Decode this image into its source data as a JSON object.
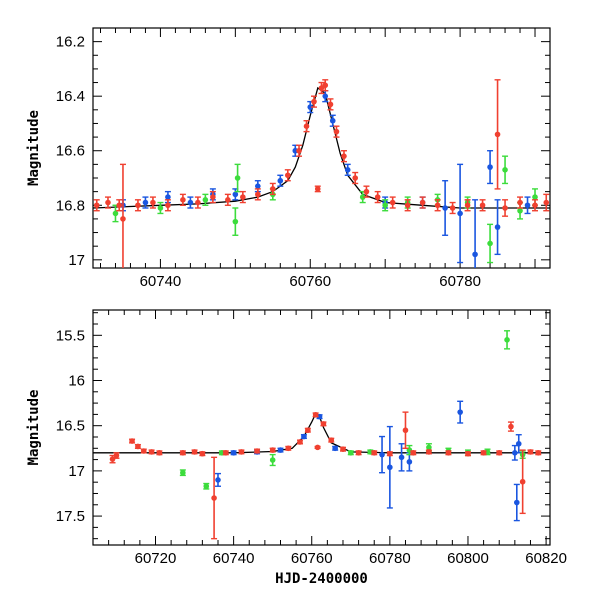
{
  "chart_data": [
    {
      "type": "scatter",
      "title": "",
      "xlabel": "",
      "ylabel": "Magnitude",
      "xlim": [
        60731,
        60792
      ],
      "ylim": [
        17.03,
        16.15
      ],
      "y_inverted": true,
      "xticks": [
        60740,
        60750,
        60760,
        60770,
        60780,
        60790
      ],
      "xtick_labels": [
        "60740",
        "",
        "60760",
        "",
        "60780",
        ""
      ],
      "yticks": [
        16.2,
        16.4,
        16.6,
        16.8,
        17.0
      ],
      "ytick_labels": [
        "16.2",
        "16.4",
        "16.6",
        "16.8",
        "17"
      ],
      "grid": false,
      "model": {
        "name": "",
        "color": "#000000",
        "x": [
          60731,
          60740,
          60745,
          60750,
          60753,
          60755,
          60757,
          60758,
          60759,
          60760,
          60761,
          60762,
          60763,
          60764,
          60765,
          60767,
          60770,
          60775,
          60780,
          60792
        ],
        "y": [
          16.81,
          16.8,
          16.795,
          16.785,
          16.77,
          16.75,
          16.71,
          16.66,
          16.58,
          16.47,
          16.37,
          16.39,
          16.5,
          16.61,
          16.69,
          16.76,
          16.79,
          16.8,
          16.81,
          16.81
        ]
      },
      "series": [
        {
          "color": "#1a56e0",
          "points": [
            {
              "x": 60735,
              "y": 16.8,
              "err": 0.02
            },
            {
              "x": 60738,
              "y": 16.79,
              "err": 0.02
            },
            {
              "x": 60741,
              "y": 16.77,
              "err": 0.02
            },
            {
              "x": 60744,
              "y": 16.79,
              "err": 0.02
            },
            {
              "x": 60747,
              "y": 16.76,
              "err": 0.02
            },
            {
              "x": 60750,
              "y": 16.76,
              "err": 0.02
            },
            {
              "x": 60753,
              "y": 16.73,
              "err": 0.02
            },
            {
              "x": 60756,
              "y": 16.71,
              "err": 0.02
            },
            {
              "x": 60758,
              "y": 16.6,
              "err": 0.02
            },
            {
              "x": 60760,
              "y": 16.44,
              "err": 0.02
            },
            {
              "x": 60762,
              "y": 16.4,
              "err": 0.02
            },
            {
              "x": 60763,
              "y": 16.49,
              "err": 0.02
            },
            {
              "x": 60765,
              "y": 16.67,
              "err": 0.02
            },
            {
              "x": 60770,
              "y": 16.79,
              "err": 0.02
            },
            {
              "x": 60775,
              "y": 16.79,
              "err": 0.02
            },
            {
              "x": 60778,
              "y": 16.81,
              "err": 0.1
            },
            {
              "x": 60780,
              "y": 16.83,
              "err": 0.18
            },
            {
              "x": 60782,
              "y": 16.98,
              "err": 0.2
            },
            {
              "x": 60784,
              "y": 16.66,
              "err": 0.06
            },
            {
              "x": 60785,
              "y": 16.88,
              "err": 0.1
            },
            {
              "x": 60789,
              "y": 16.8,
              "err": 0.03
            }
          ]
        },
        {
          "color": "#3cdc3c",
          "points": [
            {
              "x": 60734,
              "y": 16.83,
              "err": 0.03
            },
            {
              "x": 60740,
              "y": 16.81,
              "err": 0.02
            },
            {
              "x": 60746,
              "y": 16.78,
              "err": 0.02
            },
            {
              "x": 60750,
              "y": 16.86,
              "err": 0.05
            },
            {
              "x": 60750.3,
              "y": 16.7,
              "err": 0.05
            },
            {
              "x": 60755,
              "y": 16.76,
              "err": 0.02
            },
            {
              "x": 60767,
              "y": 16.77,
              "err": 0.02
            },
            {
              "x": 60770,
              "y": 16.8,
              "err": 0.02
            },
            {
              "x": 60773,
              "y": 16.79,
              "err": 0.02
            },
            {
              "x": 60777,
              "y": 16.78,
              "err": 0.02
            },
            {
              "x": 60781,
              "y": 16.79,
              "err": 0.02
            },
            {
              "x": 60784,
              "y": 16.94,
              "err": 0.07
            },
            {
              "x": 60786,
              "y": 16.67,
              "err": 0.05
            },
            {
              "x": 60788,
              "y": 16.82,
              "err": 0.03
            },
            {
              "x": 60790,
              "y": 16.77,
              "err": 0.03
            }
          ]
        },
        {
          "color": "#f04030",
          "points": [
            {
              "x": 60731.5,
              "y": 16.8,
              "err": 0.02
            },
            {
              "x": 60733,
              "y": 16.79,
              "err": 0.02
            },
            {
              "x": 60734.5,
              "y": 16.8,
              "err": 0.02
            },
            {
              "x": 60735,
              "y": 16.85,
              "err": 0.2
            },
            {
              "x": 60737,
              "y": 16.8,
              "err": 0.02
            },
            {
              "x": 60739,
              "y": 16.79,
              "err": 0.02
            },
            {
              "x": 60741,
              "y": 16.8,
              "err": 0.02
            },
            {
              "x": 60743,
              "y": 16.78,
              "err": 0.02
            },
            {
              "x": 60745,
              "y": 16.79,
              "err": 0.02
            },
            {
              "x": 60747,
              "y": 16.77,
              "err": 0.02
            },
            {
              "x": 60749,
              "y": 16.78,
              "err": 0.02
            },
            {
              "x": 60751,
              "y": 16.77,
              "err": 0.02
            },
            {
              "x": 60753,
              "y": 16.76,
              "err": 0.02
            },
            {
              "x": 60755,
              "y": 16.74,
              "err": 0.02
            },
            {
              "x": 60757,
              "y": 16.69,
              "err": 0.02
            },
            {
              "x": 60758.5,
              "y": 16.6,
              "err": 0.02
            },
            {
              "x": 60759.5,
              "y": 16.51,
              "err": 0.02
            },
            {
              "x": 60760.5,
              "y": 16.42,
              "err": 0.02
            },
            {
              "x": 60761,
              "y": 16.74,
              "err": 0.01
            },
            {
              "x": 60761.5,
              "y": 16.37,
              "err": 0.02
            },
            {
              "x": 60762,
              "y": 16.36,
              "err": 0.02
            },
            {
              "x": 60762.7,
              "y": 16.43,
              "err": 0.02
            },
            {
              "x": 60763.5,
              "y": 16.53,
              "err": 0.02
            },
            {
              "x": 60764.5,
              "y": 16.62,
              "err": 0.02
            },
            {
              "x": 60766,
              "y": 16.7,
              "err": 0.02
            },
            {
              "x": 60767.5,
              "y": 16.75,
              "err": 0.02
            },
            {
              "x": 60769,
              "y": 16.77,
              "err": 0.02
            },
            {
              "x": 60771,
              "y": 16.79,
              "err": 0.02
            },
            {
              "x": 60773,
              "y": 16.8,
              "err": 0.02
            },
            {
              "x": 60775,
              "y": 16.79,
              "err": 0.02
            },
            {
              "x": 60777,
              "y": 16.8,
              "err": 0.02
            },
            {
              "x": 60779,
              "y": 16.81,
              "err": 0.02
            },
            {
              "x": 60781,
              "y": 16.8,
              "err": 0.02
            },
            {
              "x": 60783,
              "y": 16.8,
              "err": 0.02
            },
            {
              "x": 60785,
              "y": 16.54,
              "err": 0.2
            },
            {
              "x": 60786,
              "y": 16.81,
              "err": 0.03
            },
            {
              "x": 60788,
              "y": 16.79,
              "err": 0.02
            },
            {
              "x": 60790,
              "y": 16.8,
              "err": 0.02
            },
            {
              "x": 60791.5,
              "y": 16.79,
              "err": 0.03
            }
          ]
        }
      ]
    },
    {
      "type": "scatter",
      "title": "",
      "xlabel": "HJD-2400000",
      "ylabel": "Magnitude",
      "xlim": [
        60704,
        60821
      ],
      "ylim": [
        17.82,
        15.22
      ],
      "y_inverted": true,
      "xticks": [
        60720,
        60740,
        60760,
        60780,
        60800,
        60820
      ],
      "xtick_labels": [
        "60720",
        "60740",
        "60760",
        "60780",
        "60800",
        "60820"
      ],
      "yticks": [
        15.5,
        16.0,
        16.5,
        17.0,
        17.5
      ],
      "ytick_labels": [
        "15.5",
        "16",
        "16.5",
        "17",
        "17.5"
      ],
      "grid": false,
      "model": {
        "name": "",
        "color": "#000000",
        "x": [
          60704,
          60740,
          60750,
          60755,
          60758,
          60760,
          60761,
          60762,
          60763,
          60765,
          60770,
          60780,
          60821
        ],
        "y": [
          16.8,
          16.8,
          16.785,
          16.75,
          16.62,
          16.46,
          16.37,
          16.4,
          16.52,
          16.69,
          16.79,
          16.8,
          16.8
        ]
      },
      "series": [
        {
          "color": "#1a56e0",
          "points": [
            {
              "x": 60736,
              "y": 17.1,
              "err": 0.07
            },
            {
              "x": 60740,
              "y": 16.8,
              "err": 0.02
            },
            {
              "x": 60746,
              "y": 16.79,
              "err": 0.02
            },
            {
              "x": 60752,
              "y": 16.77,
              "err": 0.02
            },
            {
              "x": 60758,
              "y": 16.62,
              "err": 0.02
            },
            {
              "x": 60762,
              "y": 16.4,
              "err": 0.02
            },
            {
              "x": 60766,
              "y": 16.75,
              "err": 0.02
            },
            {
              "x": 60778,
              "y": 16.82,
              "err": 0.2
            },
            {
              "x": 60780,
              "y": 16.96,
              "err": 0.45
            },
            {
              "x": 60783,
              "y": 16.85,
              "err": 0.15
            },
            {
              "x": 60785,
              "y": 16.9,
              "err": 0.1
            },
            {
              "x": 60798,
              "y": 16.35,
              "err": 0.12
            },
            {
              "x": 60812,
              "y": 16.8,
              "err": 0.08
            },
            {
              "x": 60812.5,
              "y": 17.35,
              "err": 0.2
            },
            {
              "x": 60813,
              "y": 16.7,
              "err": 0.1
            }
          ]
        },
        {
          "color": "#3cdc3c",
          "points": [
            {
              "x": 60727,
              "y": 17.02,
              "err": 0.03
            },
            {
              "x": 60733,
              "y": 17.17,
              "err": 0.03
            },
            {
              "x": 60737,
              "y": 16.8,
              "err": 0.02
            },
            {
              "x": 60750,
              "y": 16.88,
              "err": 0.06
            },
            {
              "x": 60770,
              "y": 16.8,
              "err": 0.02
            },
            {
              "x": 60775,
              "y": 16.79,
              "err": 0.02
            },
            {
              "x": 60785,
              "y": 16.77,
              "err": 0.05
            },
            {
              "x": 60790,
              "y": 16.74,
              "err": 0.04
            },
            {
              "x": 60795,
              "y": 16.78,
              "err": 0.03
            },
            {
              "x": 60800,
              "y": 16.8,
              "err": 0.03
            },
            {
              "x": 60805,
              "y": 16.79,
              "err": 0.03
            },
            {
              "x": 60810,
              "y": 15.55,
              "err": 0.1
            },
            {
              "x": 60814,
              "y": 16.82,
              "err": 0.04
            }
          ]
        },
        {
          "color": "#f04030",
          "points": [
            {
              "x": 60709,
              "y": 16.87,
              "err": 0.04
            },
            {
              "x": 60710,
              "y": 16.83,
              "err": 0.03
            },
            {
              "x": 60714,
              "y": 16.67,
              "err": 0.02
            },
            {
              "x": 60715.5,
              "y": 16.73,
              "err": 0.02
            },
            {
              "x": 60717,
              "y": 16.78,
              "err": 0.02
            },
            {
              "x": 60719,
              "y": 16.79,
              "err": 0.02
            },
            {
              "x": 60721,
              "y": 16.8,
              "err": 0.02
            },
            {
              "x": 60727,
              "y": 16.8,
              "err": 0.02
            },
            {
              "x": 60730,
              "y": 16.79,
              "err": 0.02
            },
            {
              "x": 60732,
              "y": 16.81,
              "err": 0.02
            },
            {
              "x": 60735,
              "y": 17.3,
              "err": 0.45
            },
            {
              "x": 60738,
              "y": 16.8,
              "err": 0.02
            },
            {
              "x": 60742,
              "y": 16.79,
              "err": 0.02
            },
            {
              "x": 60746,
              "y": 16.78,
              "err": 0.02
            },
            {
              "x": 60750,
              "y": 16.77,
              "err": 0.02
            },
            {
              "x": 60754,
              "y": 16.75,
              "err": 0.02
            },
            {
              "x": 60757,
              "y": 16.68,
              "err": 0.02
            },
            {
              "x": 60759,
              "y": 16.55,
              "err": 0.02
            },
            {
              "x": 60761,
              "y": 16.38,
              "err": 0.02
            },
            {
              "x": 60761.5,
              "y": 16.74,
              "err": 0.01
            },
            {
              "x": 60763,
              "y": 16.48,
              "err": 0.02
            },
            {
              "x": 60765,
              "y": 16.66,
              "err": 0.02
            },
            {
              "x": 60768,
              "y": 16.76,
              "err": 0.02
            },
            {
              "x": 60772,
              "y": 16.8,
              "err": 0.02
            },
            {
              "x": 60776,
              "y": 16.8,
              "err": 0.02
            },
            {
              "x": 60780,
              "y": 16.81,
              "err": 0.02
            },
            {
              "x": 60784,
              "y": 16.55,
              "err": 0.2
            },
            {
              "x": 60786,
              "y": 16.8,
              "err": 0.02
            },
            {
              "x": 60790,
              "y": 16.79,
              "err": 0.02
            },
            {
              "x": 60795,
              "y": 16.8,
              "err": 0.02
            },
            {
              "x": 60800,
              "y": 16.81,
              "err": 0.02
            },
            {
              "x": 60804,
              "y": 16.8,
              "err": 0.02
            },
            {
              "x": 60808,
              "y": 16.8,
              "err": 0.02
            },
            {
              "x": 60811,
              "y": 16.51,
              "err": 0.05
            },
            {
              "x": 60814,
              "y": 17.12,
              "err": 0.35
            },
            {
              "x": 60816,
              "y": 16.79,
              "err": 0.02
            },
            {
              "x": 60818,
              "y": 16.8,
              "err": 0.02
            }
          ]
        }
      ]
    }
  ]
}
